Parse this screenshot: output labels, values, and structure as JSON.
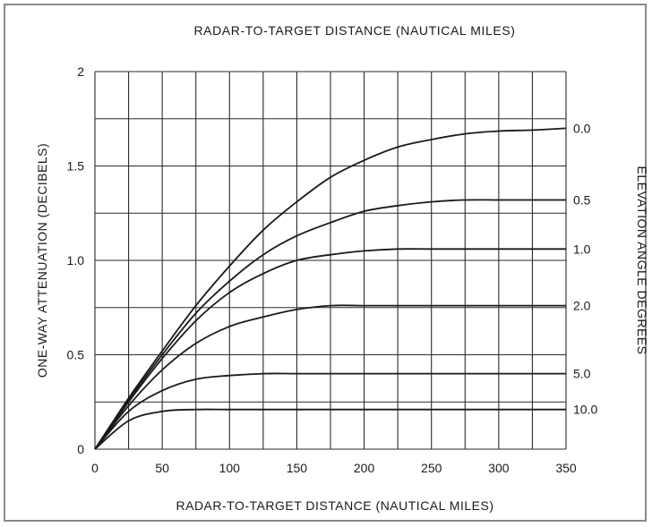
{
  "chart_data": {
    "type": "line",
    "title_top": "RADAR-TO-TARGET DISTANCE (NAUTICAL MILES)",
    "xlabel": "RADAR-TO-TARGET DISTANCE (NAUTICAL MILES)",
    "ylabel": "ONE-WAY ATTENUATION (DECIBELS)",
    "right_label": "ELEVATION ANGLE DEGREES",
    "xlim": [
      0,
      350
    ],
    "ylim": [
      0,
      2
    ],
    "xticks": [
      0,
      50,
      100,
      150,
      200,
      250,
      300,
      350
    ],
    "yticks": [
      0,
      0.5,
      1.0,
      1.5,
      2
    ],
    "ytick_labels": [
      "0",
      "0.5",
      "1.0",
      "1.5",
      "2"
    ],
    "x_minor_step": 25,
    "y_minor_step": 0.25,
    "grid": true,
    "series": [
      {
        "name": "0.0",
        "x": [
          0,
          25,
          50,
          75,
          100,
          125,
          150,
          175,
          200,
          225,
          250,
          275,
          300,
          325,
          350
        ],
        "values": [
          0,
          0.27,
          0.52,
          0.76,
          0.97,
          1.16,
          1.31,
          1.44,
          1.53,
          1.6,
          1.64,
          1.67,
          1.685,
          1.69,
          1.7
        ]
      },
      {
        "name": "0.5",
        "x": [
          0,
          25,
          50,
          75,
          100,
          125,
          150,
          175,
          200,
          225,
          250,
          275,
          300,
          325,
          350
        ],
        "values": [
          0,
          0.26,
          0.5,
          0.72,
          0.89,
          1.03,
          1.13,
          1.2,
          1.26,
          1.29,
          1.31,
          1.32,
          1.32,
          1.32,
          1.32
        ]
      },
      {
        "name": "1.0",
        "x": [
          0,
          25,
          50,
          75,
          100,
          125,
          150,
          175,
          200,
          225,
          250,
          275,
          300,
          325,
          350
        ],
        "values": [
          0,
          0.25,
          0.48,
          0.68,
          0.83,
          0.93,
          1.0,
          1.03,
          1.05,
          1.06,
          1.06,
          1.06,
          1.06,
          1.06,
          1.06
        ]
      },
      {
        "name": "2.0",
        "x": [
          0,
          25,
          50,
          75,
          100,
          125,
          150,
          175,
          200,
          225,
          250,
          275,
          300,
          325,
          350
        ],
        "values": [
          0,
          0.23,
          0.42,
          0.56,
          0.65,
          0.7,
          0.74,
          0.76,
          0.76,
          0.76,
          0.76,
          0.76,
          0.76,
          0.76,
          0.76
        ]
      },
      {
        "name": "5.0",
        "x": [
          0,
          25,
          50,
          75,
          100,
          125,
          150,
          175,
          200,
          225,
          250,
          275,
          300,
          325,
          350
        ],
        "values": [
          0,
          0.2,
          0.31,
          0.37,
          0.39,
          0.4,
          0.4,
          0.4,
          0.4,
          0.4,
          0.4,
          0.4,
          0.4,
          0.4,
          0.4
        ]
      },
      {
        "name": "10.0",
        "x": [
          0,
          25,
          50,
          75,
          100,
          125,
          150,
          175,
          200,
          225,
          250,
          275,
          300,
          325,
          350
        ],
        "values": [
          0,
          0.15,
          0.2,
          0.21,
          0.21,
          0.21,
          0.21,
          0.21,
          0.21,
          0.21,
          0.21,
          0.21,
          0.21,
          0.21,
          0.21
        ]
      }
    ],
    "right_labels": [
      {
        "text": "0.0",
        "y": 1.7
      },
      {
        "text": "0.5",
        "y": 1.32
      },
      {
        "text": "1.0",
        "y": 1.06
      },
      {
        "text": "2.0",
        "y": 0.76
      },
      {
        "text": "5.0",
        "y": 0.4
      },
      {
        "text": "10.0",
        "y": 0.21
      }
    ],
    "colors": {
      "ink": "#1a1a1a",
      "grid": "#2a2a2a",
      "frame": "#8a8a8a"
    }
  }
}
